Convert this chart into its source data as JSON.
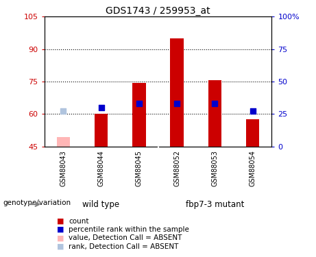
{
  "title": "GDS1743 / 259953_at",
  "samples": [
    "GSM88043",
    "GSM88044",
    "GSM88045",
    "GSM88052",
    "GSM88053",
    "GSM88054"
  ],
  "ylim_left": [
    45,
    105
  ],
  "ylim_right": [
    0,
    100
  ],
  "yticks_left": [
    45,
    60,
    75,
    90,
    105
  ],
  "yticks_right": [
    0,
    25,
    50,
    75,
    100
  ],
  "grid_lines": [
    60,
    75,
    90
  ],
  "baseline": 45,
  "bars": {
    "GSM88043": {
      "value": 49.5,
      "absent": true
    },
    "GSM88044": {
      "value": 60.0,
      "absent": false
    },
    "GSM88045": {
      "value": 74.5,
      "absent": false
    },
    "GSM88052": {
      "value": 95.0,
      "absent": false
    },
    "GSM88053": {
      "value": 75.5,
      "absent": false
    },
    "GSM88054": {
      "value": 57.5,
      "absent": false
    }
  },
  "ranks": {
    "GSM88043": {
      "value": 61.5,
      "absent": true
    },
    "GSM88044": {
      "value": 63.0,
      "absent": false
    },
    "GSM88045": {
      "value": 65.0,
      "absent": false
    },
    "GSM88052": {
      "value": 65.0,
      "absent": false
    },
    "GSM88053": {
      "value": 65.0,
      "absent": false
    },
    "GSM88054": {
      "value": 61.5,
      "absent": false
    }
  },
  "bar_color_present": "#CC0000",
  "bar_color_absent": "#FFB6B6",
  "rank_color_present": "#0000CC",
  "rank_color_absent": "#B0C4DE",
  "bar_width": 0.35,
  "rank_marker_size": 40,
  "legend_items": [
    {
      "label": "count",
      "color": "#CC0000"
    },
    {
      "label": "percentile rank within the sample",
      "color": "#0000CC"
    },
    {
      "label": "value, Detection Call = ABSENT",
      "color": "#FFB6B6"
    },
    {
      "label": "rank, Detection Call = ABSENT",
      "color": "#B0C4DE"
    }
  ],
  "groups": [
    {
      "label": "wild type",
      "start": 0,
      "end": 2
    },
    {
      "label": "fbp7-3 mutant",
      "start": 3,
      "end": 5
    }
  ],
  "group_color": "#66DD66",
  "sample_bg_color": "#CCCCCC",
  "title_fontsize": 10,
  "tick_fontsize": 8,
  "label_fontsize": 8
}
